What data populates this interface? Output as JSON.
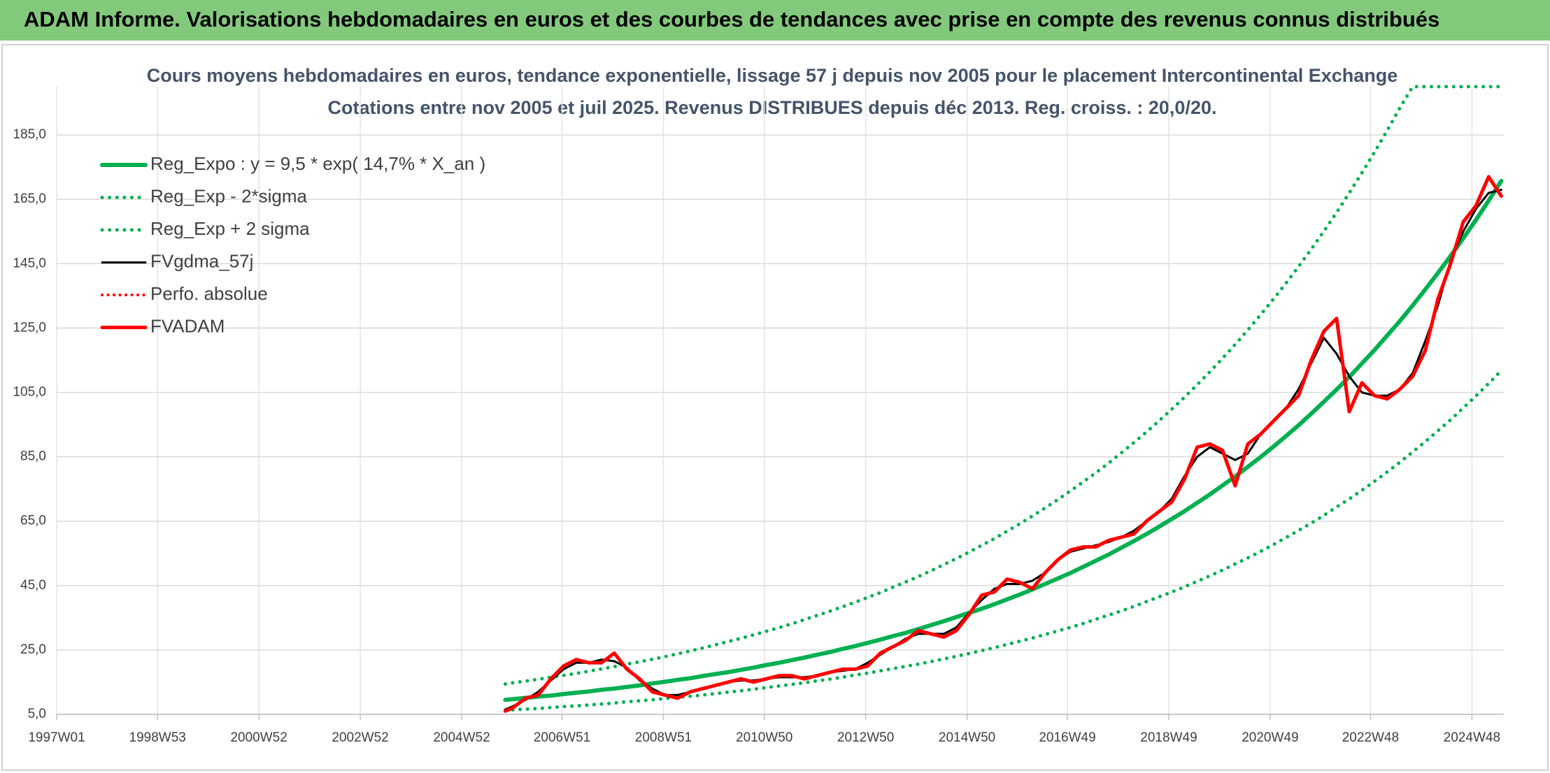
{
  "header": {
    "title": "ADAM Informe. Valorisations hebdomadaires en euros et des courbes de tendances avec prise en compte des revenus connus distribués"
  },
  "chart_data": {
    "type": "line",
    "title": "Cours moyens hebdomadaires en euros, tendance exponentielle, lissage 57 j depuis nov 2005 pour le placement Intercontinental Exchange",
    "subtitle": "Cotations entre nov 2005 et juil 2025. Revenus DISTRIBUES depuis déc 2013. Reg. croiss. : 20,0/20.",
    "x": [
      2005.85,
      2006,
      2006.25,
      2006.5,
      2006.75,
      2007,
      2007.25,
      2007.5,
      2007.75,
      2008,
      2008.25,
      2008.5,
      2008.75,
      2009,
      2009.25,
      2009.5,
      2009.75,
      2010,
      2010.25,
      2010.5,
      2010.75,
      2011,
      2011.25,
      2011.5,
      2011.75,
      2012,
      2012.25,
      2012.5,
      2012.75,
      2013,
      2013.25,
      2013.5,
      2013.75,
      2014,
      2014.25,
      2014.5,
      2014.75,
      2015,
      2015.25,
      2015.5,
      2015.75,
      2016,
      2016.25,
      2016.5,
      2016.75,
      2017,
      2017.25,
      2017.5,
      2017.75,
      2018,
      2018.25,
      2018.5,
      2018.75,
      2019,
      2019.25,
      2019.5,
      2019.75,
      2020,
      2020.25,
      2020.5,
      2020.75,
      2021,
      2021.25,
      2021.5,
      2021.75,
      2022,
      2022.25,
      2022.5,
      2022.75,
      2023,
      2023.25,
      2023.5,
      2023.75,
      2024,
      2024.25,
      2024.5,
      2024.75,
      2025,
      2025.25,
      2025.5
    ],
    "series": [
      {
        "name": "Reg_Expo : y = 9,5 * exp( 14,7% *  X_an )",
        "color": "#00b050",
        "style": "solid",
        "width": 6,
        "values": [
          9.5,
          9.7,
          10.1,
          10.5,
          10.8,
          11.3,
          11.7,
          12.1,
          12.6,
          13.0,
          13.5,
          14.0,
          14.6,
          15.1,
          15.7,
          16.2,
          16.9,
          17.5,
          18.1,
          18.8,
          19.5,
          20.3,
          21.0,
          21.8,
          22.6,
          23.5,
          24.3,
          25.3,
          26.2,
          27.2,
          28.2,
          29.3,
          30.3,
          31.5,
          32.7,
          33.9,
          35.2,
          36.5,
          37.8,
          39.2,
          40.7,
          42.2,
          43.8,
          45.5,
          47.2,
          48.9,
          50.8,
          52.7,
          54.6,
          56.7,
          58.8,
          61.0,
          63.3,
          65.7,
          68.1,
          70.7,
          73.3,
          76.1,
          78.9,
          81.9,
          84.9,
          88.1,
          91.4,
          94.8,
          98.4,
          102.1,
          105.9,
          109.8,
          114.0,
          118.2,
          122.7,
          127.2,
          132.0,
          137.0,
          142.1,
          147.4,
          152.9,
          158.6,
          164.6,
          170.7
        ]
      },
      {
        "name": "Reg_Exp - 2*sigma",
        "color": "#00b050",
        "style": "dotted",
        "width": 5,
        "values": [
          6.2,
          6.4,
          6.6,
          6.8,
          7.1,
          7.4,
          7.6,
          7.9,
          8.2,
          8.5,
          8.9,
          9.2,
          9.5,
          9.9,
          10.3,
          10.6,
          11.0,
          11.4,
          11.9,
          12.3,
          12.8,
          13.3,
          13.8,
          14.3,
          14.8,
          15.4,
          15.9,
          16.5,
          17.2,
          17.8,
          18.5,
          19.2,
          19.9,
          20.6,
          21.4,
          22.2,
          23.0,
          23.9,
          24.8,
          25.7,
          26.7,
          27.7,
          28.7,
          29.8,
          30.9,
          32.0,
          33.2,
          34.5,
          35.8,
          37.1,
          38.5,
          40.0,
          41.5,
          43.0,
          44.6,
          46.3,
          48.0,
          49.8,
          51.7,
          53.6,
          55.6,
          57.7,
          59.9,
          62.1,
          64.4,
          66.8,
          69.4,
          71.9,
          74.6,
          77.4,
          80.3,
          83.3,
          86.5,
          89.7,
          93.1,
          96.5,
          100.2,
          103.9,
          107.8,
          111.8
        ]
      },
      {
        "name": "Reg_Exp + 2 sigma",
        "color": "#00b050",
        "style": "dotted",
        "width": 5,
        "values": [
          14.4,
          14.8,
          15.3,
          15.9,
          16.5,
          17.1,
          17.7,
          18.4,
          19.1,
          19.8,
          20.6,
          21.3,
          22.1,
          22.9,
          23.8,
          24.7,
          25.6,
          26.6,
          27.6,
          28.6,
          29.7,
          30.8,
          31.9,
          33.1,
          34.4,
          35.7,
          37.0,
          38.4,
          39.8,
          41.3,
          42.8,
          44.5,
          46.1,
          47.8,
          49.6,
          51.5,
          53.4,
          55.4,
          57.5,
          59.6,
          61.9,
          64.2,
          66.6,
          69.1,
          71.7,
          74.4,
          77.2,
          80.0,
          83.0,
          86.2,
          89.4,
          92.7,
          96.2,
          99.8,
          103.5,
          107.4,
          111.4,
          115.6,
          119.9,
          124.4,
          129.1,
          133.9,
          138.9,
          144.1,
          149.5,
          155.1,
          160.9,
          167.0,
          173.2,
          179.7,
          186.4,
          193.4,
          200,
          200,
          200,
          200,
          200,
          200,
          200,
          200
        ]
      },
      {
        "name": "FVgdma_57j",
        "color": "#000000",
        "style": "solid",
        "width": 3,
        "values": [
          6.5,
          7.5,
          9.5,
          12,
          15.5,
          19,
          21,
          21,
          22,
          21.5,
          19.5,
          15.5,
          13,
          11,
          11,
          12,
          13,
          14,
          15,
          15.5,
          15.5,
          16,
          16.5,
          16.5,
          16.5,
          17,
          18,
          18.5,
          19,
          21,
          23.5,
          26,
          28.5,
          30,
          30,
          30,
          32,
          36.5,
          40.5,
          44,
          45.5,
          45.5,
          46.5,
          49,
          53,
          55.5,
          56.5,
          57.5,
          58.5,
          60,
          62,
          65,
          68,
          72,
          79,
          85,
          88,
          86,
          84,
          86,
          92,
          96,
          100,
          106,
          114,
          122,
          117,
          110,
          105,
          104,
          104,
          106,
          111,
          121,
          132,
          146,
          155,
          162,
          167,
          168
        ]
      },
      {
        "name": "Perfo. absolue",
        "color": "#ff0000",
        "style": "dotted",
        "width": 4,
        "values": [
          6,
          7,
          10,
          11,
          16,
          20,
          22,
          21,
          21,
          24,
          19,
          16,
          12,
          11,
          10,
          12,
          13,
          14,
          15,
          16,
          15,
          16,
          17,
          17,
          16,
          17,
          18,
          19,
          19,
          20,
          24,
          26,
          28,
          31,
          30,
          29,
          31,
          36,
          42,
          43,
          47,
          46,
          44,
          49,
          53,
          56,
          57,
          57,
          59,
          60,
          61,
          65,
          68,
          71,
          78,
          88,
          89,
          87,
          76,
          89,
          92,
          96,
          100,
          104,
          115,
          124,
          128,
          99,
          108,
          104,
          103,
          106,
          110,
          118,
          134,
          145,
          158,
          163,
          172,
          166
        ]
      },
      {
        "name": "FVADAM",
        "color": "#ff0000",
        "style": "solid",
        "width": 5,
        "values": [
          6,
          7,
          10,
          11,
          16,
          20,
          22,
          21,
          21,
          24,
          19,
          16,
          12,
          11,
          10,
          12,
          13,
          14,
          15,
          16,
          15,
          16,
          17,
          17,
          16,
          17,
          18,
          19,
          19,
          20,
          24,
          26,
          28,
          31,
          30,
          29,
          31,
          36,
          42,
          43,
          47,
          46,
          44,
          49,
          53,
          56,
          57,
          57,
          59,
          60,
          61,
          65,
          68,
          71,
          78,
          88,
          89,
          87,
          76,
          89,
          92,
          96,
          100,
          104,
          115,
          124,
          128,
          99,
          108,
          104,
          103,
          106,
          110,
          118,
          134,
          145,
          158,
          163,
          172,
          166
        ]
      }
    ],
    "xlim": [
      1997,
      2025.55
    ],
    "xticks": [
      {
        "value": 1997.0,
        "label": "1997W01"
      },
      {
        "value": 1998.99,
        "label": "1998W53"
      },
      {
        "value": 2000.99,
        "label": "2000W52"
      },
      {
        "value": 2002.99,
        "label": "2002W52"
      },
      {
        "value": 2004.99,
        "label": "2004W52"
      },
      {
        "value": 2006.97,
        "label": "2006W51"
      },
      {
        "value": 2008.97,
        "label": "2008W51"
      },
      {
        "value": 2010.96,
        "label": "2010W50"
      },
      {
        "value": 2012.96,
        "label": "2012W50"
      },
      {
        "value": 2014.96,
        "label": "2014W50"
      },
      {
        "value": 2016.94,
        "label": "2016W49"
      },
      {
        "value": 2018.94,
        "label": "2018W49"
      },
      {
        "value": 2020.94,
        "label": "2020W49"
      },
      {
        "value": 2022.92,
        "label": "2022W48"
      },
      {
        "value": 2024.92,
        "label": "2024W48"
      }
    ],
    "ylim": [
      5,
      200
    ],
    "yticks": [
      {
        "value": 5,
        "label": "5,0"
      },
      {
        "value": 25,
        "label": "25,0"
      },
      {
        "value": 45,
        "label": "45,0"
      },
      {
        "value": 65,
        "label": "65,0"
      },
      {
        "value": 85,
        "label": "85,0"
      },
      {
        "value": 105,
        "label": "105,0"
      },
      {
        "value": 125,
        "label": "125,0"
      },
      {
        "value": 145,
        "label": "145,0"
      },
      {
        "value": 165,
        "label": "165,0"
      },
      {
        "value": 185,
        "label": "185,0"
      }
    ],
    "grid": true,
    "legend": "top-left"
  }
}
